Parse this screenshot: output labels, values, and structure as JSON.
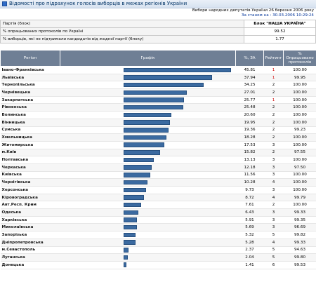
{
  "window": {
    "title": "Відомості про підрахунок голосів виборців в межах регіонів України"
  },
  "election": {
    "title": "Вибори народних депутатів України 26 березня 2006 року",
    "as_of": "За станом на : 30.03.2006 10:29:24"
  },
  "summary": {
    "party_label": "Партія (блок)",
    "party_value": "Блок \"НАША УКРАЇНА\"",
    "processed_label": "% опрацьованих протоколів по Україні",
    "processed_value": "99.52",
    "against_label": "% виборців, які не підтримали кандидатів від жодної партії (блоку)",
    "against_value": "1.77"
  },
  "columns": {
    "region": "Регіон",
    "graph": "Графік",
    "pct": "%, ЗА",
    "rank": "Рейтинг",
    "processed": "% Опрацьовано протоколів"
  },
  "colors": {
    "header_bg": "#6f7f95",
    "bar": "#3b6aa0",
    "rank_first": "#cc0000"
  },
  "rows": [
    {
      "region": "Івано-Франківська",
      "pct": "45.81",
      "rank": "1",
      "processed": "100.00"
    },
    {
      "region": "Львівська",
      "pct": "37.94",
      "rank": "1",
      "processed": "99.95"
    },
    {
      "region": "Тернопільська",
      "pct": "34.25",
      "rank": "2",
      "processed": "100.00"
    },
    {
      "region": "Чернівецька",
      "pct": "27.01",
      "rank": "2",
      "processed": "100.00"
    },
    {
      "region": "Закарпатська",
      "pct": "25.77",
      "rank": "1",
      "processed": "100.00"
    },
    {
      "region": "Рівненська",
      "pct": "25.48",
      "rank": "2",
      "processed": "100.00"
    },
    {
      "region": "Волинська",
      "pct": "20.60",
      "rank": "2",
      "processed": "100.00"
    },
    {
      "region": "Вінницька",
      "pct": "19.95",
      "rank": "2",
      "processed": "100.00"
    },
    {
      "region": "Сумська",
      "pct": "19.36",
      "rank": "2",
      "processed": "99.23"
    },
    {
      "region": "Хмельницька",
      "pct": "18.28",
      "rank": "2",
      "processed": "100.00"
    },
    {
      "region": "Житомирська",
      "pct": "17.53",
      "rank": "3",
      "processed": "100.00"
    },
    {
      "region": "м.Київ",
      "pct": "15.82",
      "rank": "2",
      "processed": "97.55"
    },
    {
      "region": "Полтавська",
      "pct": "13.13",
      "rank": "3",
      "processed": "100.00"
    },
    {
      "region": "Черкаська",
      "pct": "12.18",
      "rank": "3",
      "processed": "97.50"
    },
    {
      "region": "Київська",
      "pct": "11.56",
      "rank": "3",
      "processed": "100.00"
    },
    {
      "region": "Чернігівська",
      "pct": "10.28",
      "rank": "4",
      "processed": "100.00"
    },
    {
      "region": "Херсонська",
      "pct": "9.73",
      "rank": "3",
      "processed": "100.00"
    },
    {
      "region": "Кіровоградська",
      "pct": "8.72",
      "rank": "4",
      "processed": "99.79"
    },
    {
      "region": "Авт.Респ. Крим",
      "pct": "7.61",
      "rank": "2",
      "processed": "100.00"
    },
    {
      "region": "Одеська",
      "pct": "6.43",
      "rank": "3",
      "processed": "99.33"
    },
    {
      "region": "Харківська",
      "pct": "5.91",
      "rank": "3",
      "processed": "99.35"
    },
    {
      "region": "Миколаївська",
      "pct": "5.69",
      "rank": "3",
      "processed": "96.69"
    },
    {
      "region": "Запорізька",
      "pct": "5.32",
      "rank": "5",
      "processed": "99.82"
    },
    {
      "region": "Дніпропетровська",
      "pct": "5.28",
      "rank": "4",
      "processed": "99.33"
    },
    {
      "region": "м.Севастополь",
      "pct": "2.37",
      "rank": "5",
      "processed": "94.63"
    },
    {
      "region": "Луганська",
      "pct": "2.04",
      "rank": "5",
      "processed": "99.80"
    },
    {
      "region": "Донецька",
      "pct": "1.41",
      "rank": "6",
      "processed": "99.53"
    }
  ]
}
